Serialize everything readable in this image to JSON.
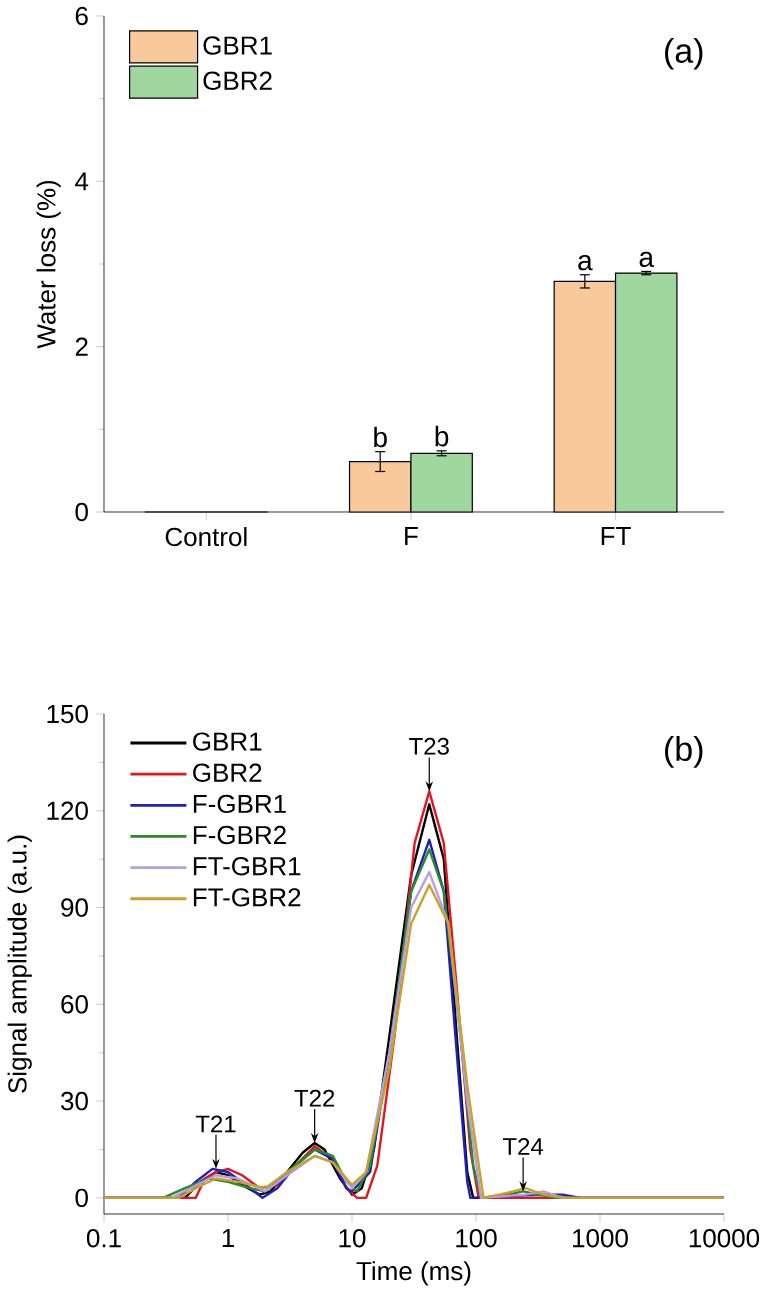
{
  "chart_data": [
    {
      "type": "bar",
      "ylabel": "Water loss (%)",
      "categories": [
        "Control",
        "F",
        "FT"
      ],
      "ylim": [
        0,
        6
      ],
      "yticks": [
        0,
        2,
        4,
        6
      ],
      "legend": "top left",
      "annotations": [
        "(a)"
      ],
      "series": [
        {
          "name": "GBR1",
          "color": "#f9c89b",
          "values": [
            0,
            0.61,
            2.79
          ],
          "errors": [
            null,
            0.12,
            0.08
          ],
          "value_labels": [
            null,
            "b",
            "a"
          ]
        },
        {
          "name": "GBR2",
          "color": "#9fd79f",
          "values": [
            0,
            0.71,
            2.89
          ],
          "errors": [
            null,
            0.03,
            0.02
          ],
          "value_labels": [
            null,
            "b",
            "a"
          ]
        }
      ]
    },
    {
      "type": "line",
      "xlabel": "Time (ms)",
      "ylabel": "Signal amplitude (a.u.)",
      "log": "x",
      "xlim": [
        0.1,
        10000
      ],
      "xticks": [
        0.1,
        1,
        10,
        100,
        1000,
        10000
      ],
      "ylim": [
        -5,
        150
      ],
      "yticks": [
        0,
        30,
        60,
        90,
        120,
        150
      ],
      "legend": "top left",
      "annotations": [
        "(b)",
        {
          "text": "T21",
          "x": 0.8,
          "y": 9
        },
        {
          "text": "T22",
          "x": 5,
          "y": 17
        },
        {
          "text": "T23",
          "x": 42,
          "y": 126
        },
        {
          "text": "T24",
          "x": 240,
          "y": 2
        }
      ],
      "series": [
        {
          "name": "GBR1",
          "color": "#000000",
          "x": [
            0.1,
            0.45,
            0.6,
            0.8,
            1.0,
            1.3,
            1.8,
            2.2,
            3,
            4,
            5,
            6,
            8,
            10,
            12,
            15,
            20,
            30,
            42,
            55,
            70,
            85,
            95,
            120,
            10000
          ],
          "values": [
            0,
            0,
            5,
            8,
            7,
            4,
            1,
            2,
            8,
            14,
            17,
            15,
            6,
            1,
            3,
            15,
            50,
            100,
            122,
            105,
            50,
            8,
            0,
            0,
            0
          ]
        },
        {
          "name": "GBR2",
          "color": "#e3161e",
          "x": [
            0.1,
            0.55,
            0.65,
            0.8,
            1.0,
            1.3,
            1.8,
            2.5,
            3.5,
            5,
            7,
            9,
            11,
            13,
            16,
            22,
            32,
            42,
            55,
            70,
            90,
            105,
            10000
          ],
          "values": [
            0,
            0,
            6,
            8,
            9,
            7,
            3,
            4,
            10,
            16,
            12,
            3,
            0,
            0,
            10,
            50,
            110,
            126,
            110,
            65,
            15,
            0,
            0
          ]
        },
        {
          "name": "F-GBR1",
          "color": "#1f1fbf",
          "x": [
            0.1,
            0.4,
            0.55,
            0.75,
            1,
            1.4,
            1.9,
            2.5,
            3.5,
            5,
            7,
            9,
            10,
            14,
            20,
            30,
            42,
            55,
            70,
            85,
            90,
            300,
            500,
            700,
            10000
          ],
          "values": [
            0,
            0,
            5,
            9,
            8,
            4,
            0,
            3,
            10,
            15,
            12,
            3,
            2,
            8,
            45,
            95,
            111,
            95,
            45,
            5,
            0,
            1,
            1,
            0,
            0
          ]
        },
        {
          "name": "F-GBR2",
          "color": "#2a8a2a",
          "x": [
            0.1,
            0.3,
            0.45,
            0.7,
            1,
            1.5,
            2,
            3,
            5,
            7,
            9,
            11,
            14,
            20,
            30,
            42,
            55,
            75,
            95,
            110,
            180,
            240,
            320,
            450,
            10000
          ],
          "values": [
            0,
            0,
            3,
            6,
            5,
            3,
            2,
            8,
            15,
            13,
            5,
            2,
            10,
            45,
            95,
            108,
            95,
            50,
            10,
            0,
            1,
            2,
            1,
            0,
            0
          ]
        },
        {
          "name": "FT-GBR1",
          "color": "#b59ee6",
          "x": [
            0.1,
            0.35,
            0.5,
            0.8,
            1.2,
            2,
            3,
            5,
            7,
            10,
            13,
            20,
            30,
            42,
            60,
            85,
            110,
            250,
            350,
            500,
            10000
          ],
          "values": [
            0,
            0,
            3,
            7,
            6,
            2,
            7,
            13,
            11,
            3,
            8,
            45,
            90,
            101,
            85,
            30,
            0,
            1,
            2,
            0,
            0
          ]
        },
        {
          "name": "FT-GBR2",
          "color": "#c9a227",
          "x": [
            0.1,
            0.4,
            0.55,
            0.8,
            1.2,
            2,
            3,
            5,
            7,
            10,
            13,
            20,
            30,
            42,
            60,
            85,
            115,
            200,
            250,
            350,
            500,
            10000
          ],
          "values": [
            0,
            0,
            3,
            6,
            5,
            3,
            8,
            13,
            11,
            4,
            8,
            40,
            85,
            97,
            85,
            35,
            0,
            2,
            3,
            1,
            0,
            0
          ]
        }
      ]
    }
  ]
}
